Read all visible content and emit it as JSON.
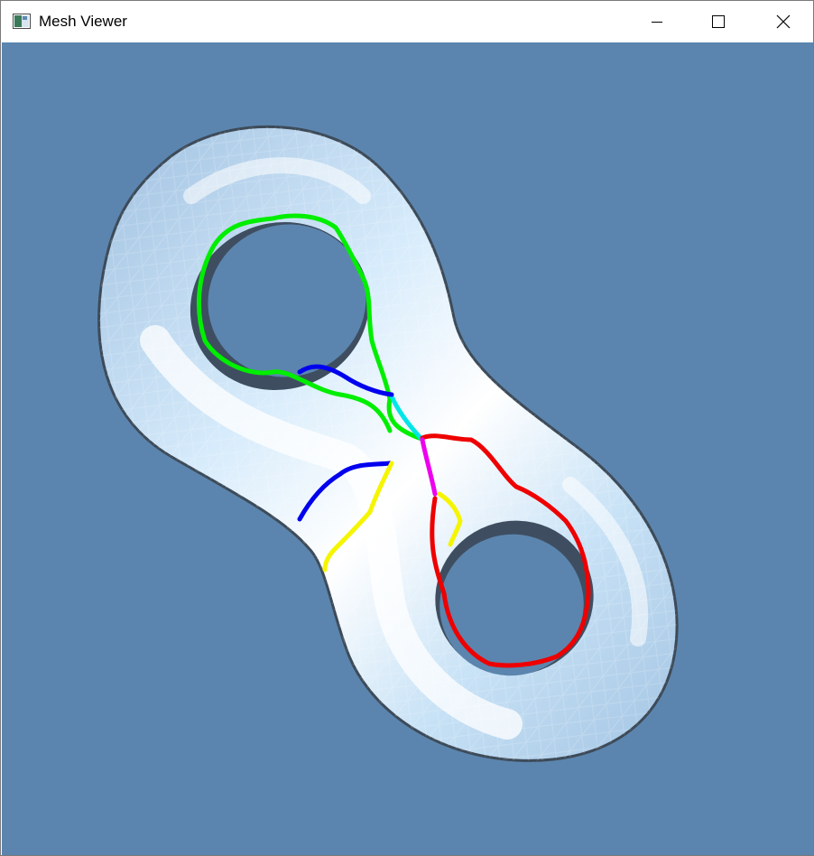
{
  "window": {
    "title": "Mesh Viewer",
    "app_icon": "mesh-app-icon",
    "controls": {
      "minimize_icon": "minimize-icon",
      "maximize_icon": "maximize-icon",
      "close_icon": "close-icon"
    }
  },
  "viewport": {
    "background_color": "#5b85ae",
    "mesh": "double-torus-surface",
    "mesh_color": "#bcd9f2",
    "paths": [
      {
        "id": "green-loop",
        "color": "#00ee00"
      },
      {
        "id": "cyan-segment",
        "color": "#00e6e6"
      },
      {
        "id": "blue-path-upper",
        "color": "#0000ee"
      },
      {
        "id": "blue-path-lower",
        "color": "#0000ee"
      },
      {
        "id": "red-loop",
        "color": "#ee0000"
      },
      {
        "id": "magenta-segment",
        "color": "#ee00ee"
      },
      {
        "id": "yellow-path-left",
        "color": "#f5f500"
      },
      {
        "id": "yellow-path-right",
        "color": "#f5f500"
      }
    ]
  }
}
